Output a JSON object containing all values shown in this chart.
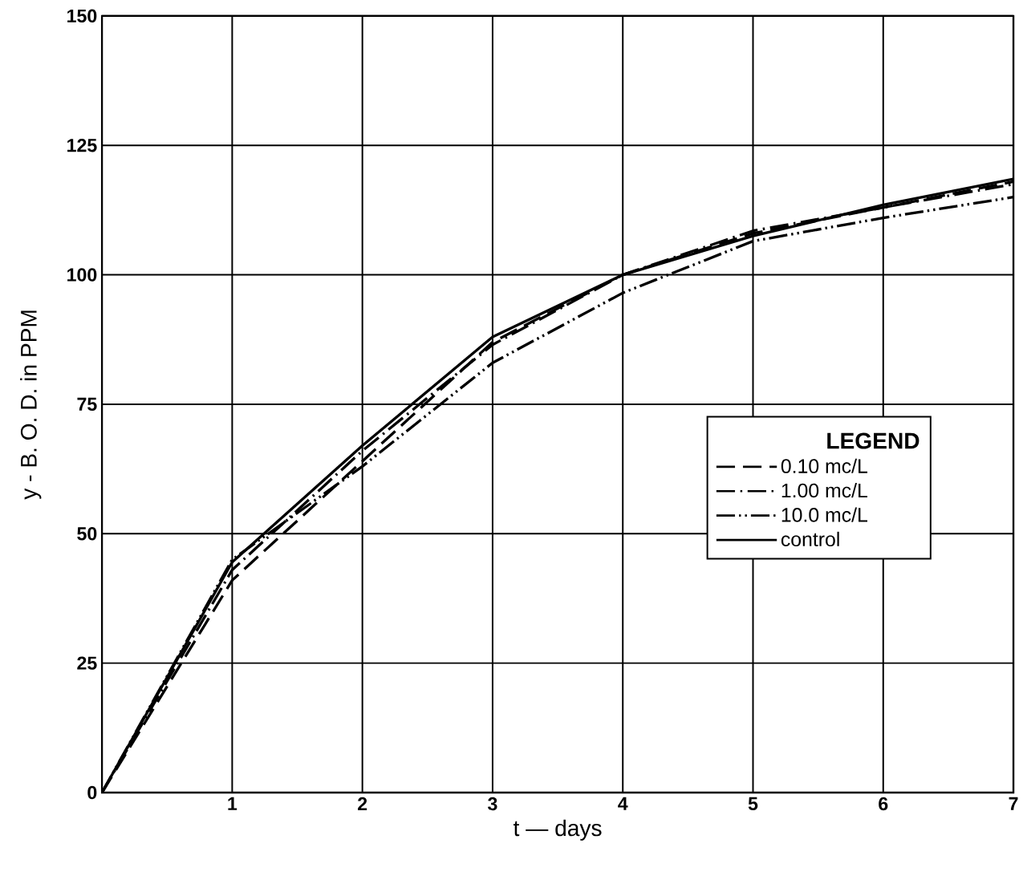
{
  "chart_data": {
    "type": "line",
    "xlabel": "t — days",
    "ylabel": "y - B. O. D. in PPM",
    "legend_title": "LEGEND",
    "x": [
      0,
      1,
      2,
      3,
      4,
      5,
      6,
      7
    ],
    "series": [
      {
        "name": "0.10 mc/L",
        "color": "#000000",
        "line_style": "dashed",
        "values": [
          0,
          41,
          64,
          87,
          100,
          108,
          113,
          118
        ]
      },
      {
        "name": "1.00 mc/L",
        "color": "#000000",
        "line_style": "dashdotted",
        "values": [
          0,
          43,
          66,
          86.5,
          100,
          108.5,
          113,
          117.5
        ]
      },
      {
        "name": "10.0 mc/L",
        "color": "#000000",
        "line_style": "dashdotdotted",
        "values": [
          0,
          45,
          63,
          83,
          96.5,
          106.5,
          111,
          115
        ]
      },
      {
        "name": "control",
        "color": "#000000",
        "line_style": "solid",
        "values": [
          0,
          44.5,
          67,
          88,
          100,
          107.5,
          113.5,
          118.5
        ]
      }
    ],
    "xlim": [
      0,
      7
    ],
    "ylim": [
      0,
      150
    ],
    "xticks": [
      1,
      2,
      3,
      4,
      5,
      6,
      7
    ],
    "yticks": [
      0,
      25,
      50,
      75,
      100,
      125,
      150
    ],
    "grid": true,
    "legend": "right"
  }
}
